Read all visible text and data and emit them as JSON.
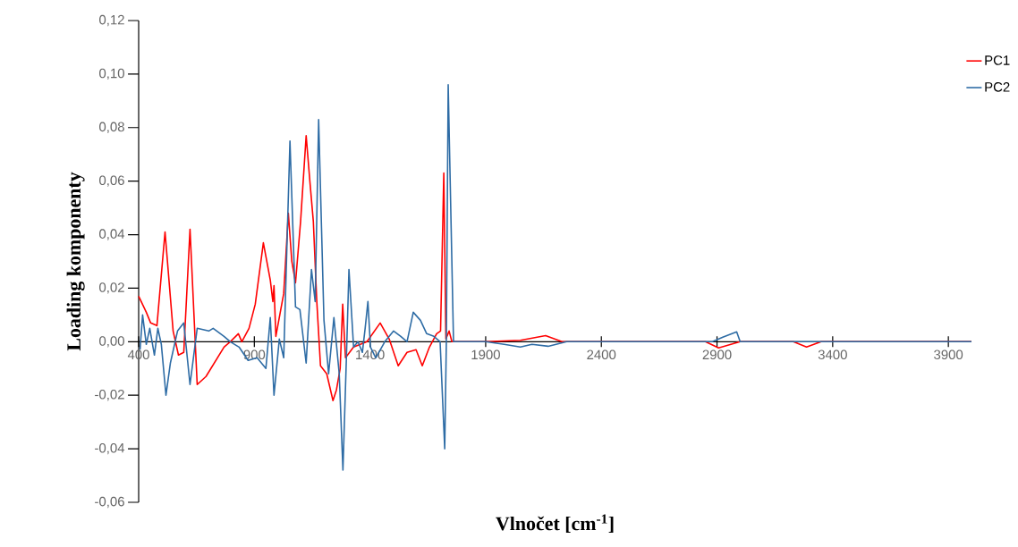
{
  "chart_data": {
    "type": "line",
    "xlabel": "Vlnočet [cm$^{-1}$]",
    "ylabel": "Loading komponenty",
    "xlim": [
      400,
      4000
    ],
    "ylim": [
      -0.06,
      0.12
    ],
    "xticks": [
      400,
      900,
      1400,
      1900,
      2400,
      2900,
      3400,
      3900
    ],
    "yticks": [
      {
        "value": -0.06,
        "label": "-0,06"
      },
      {
        "value": -0.04,
        "label": "-0,04"
      },
      {
        "value": -0.02,
        "label": "-0,02"
      },
      {
        "value": 0,
        "label": "0,00"
      },
      {
        "value": 0.02,
        "label": "0,02"
      },
      {
        "value": 0.04,
        "label": "0,04"
      },
      {
        "value": 0.06,
        "label": "0,06"
      },
      {
        "value": 0.08,
        "label": "0,08"
      },
      {
        "value": 0.1,
        "label": "0,10"
      },
      {
        "value": 0.12,
        "label": "0,12"
      }
    ],
    "grid": false,
    "legend": "top right",
    "marker": "none",
    "line_style": "solid",
    "series": [
      {
        "name": "PC1",
        "color": "#ff0000",
        "x": [
          400,
          433,
          452,
          479,
          514,
          549,
          572,
          595,
          622,
          653,
          691,
          769,
          796,
          831,
          846,
          877,
          904,
          939,
          969,
          980,
          985,
          993,
          1027,
          1047,
          1062,
          1078,
          1100,
          1124,
          1140,
          1155,
          1170,
          1186,
          1213,
          1240,
          1255,
          1271,
          1282,
          1294,
          1329,
          1387,
          1444,
          1483,
          1522,
          1560,
          1599,
          1626,
          1657,
          1688,
          1705,
          1719,
          1728,
          1742,
          1754,
          1900,
          2050,
          2159,
          2230,
          2850,
          2907,
          2960,
          3000,
          3230,
          3287,
          3350,
          4000
        ],
        "values": [
          0.017,
          0.011,
          0.007,
          0.006,
          0.041,
          0.004,
          -0.005,
          -0.004,
          0.042,
          -0.016,
          -0.013,
          -0.002,
          0,
          0.003,
          0,
          0.005,
          0.014,
          0.037,
          0.023,
          0.015,
          0.021,
          0.002,
          0.018,
          0.048,
          0.03,
          0.022,
          0.045,
          0.077,
          0.06,
          0.045,
          0.015,
          -0.009,
          -0.012,
          -0.022,
          -0.018,
          -0.01,
          0.014,
          -0.006,
          -0.002,
          0,
          0.007,
          0.001,
          -0.009,
          -0.004,
          -0.003,
          -0.009,
          -0.002,
          0.003,
          0.004,
          0.063,
          0.001,
          0.004,
          0,
          0,
          0.0005,
          0.0023,
          0,
          0,
          -0.0023,
          -0.001,
          0,
          0,
          -0.002,
          0,
          0
        ]
      },
      {
        "name": "PC2",
        "color": "#2e6ca5",
        "x": [
          406,
          417,
          433,
          448,
          468,
          483,
          498,
          518,
          537,
          568,
          595,
          622,
          653,
          703,
          722,
          769,
          796,
          834,
          873,
          912,
          950,
          969,
          985,
          1008,
          1027,
          1054,
          1078,
          1097,
          1124,
          1147,
          1163,
          1178,
          1201,
          1221,
          1244,
          1267,
          1283,
          1298,
          1309,
          1329,
          1348,
          1367,
          1379,
          1391,
          1402,
          1425,
          1464,
          1502,
          1533,
          1560,
          1587,
          1618,
          1645,
          1676,
          1703,
          1723,
          1730,
          1738,
          1761,
          1900,
          1980,
          2050,
          2100,
          2170,
          2250,
          2880,
          2925,
          2985,
          3000,
          3300,
          4000
        ],
        "values": [
          -0.003,
          0.01,
          -0.001,
          0.005,
          -0.005,
          0.005,
          -0.001,
          -0.02,
          -0.008,
          0.004,
          0.007,
          -0.016,
          0.005,
          0.004,
          0.005,
          0.002,
          0,
          -0.002,
          -0.007,
          -0.006,
          -0.01,
          0.009,
          -0.02,
          0.001,
          -0.006,
          0.075,
          0.013,
          0.012,
          -0.008,
          0.027,
          0.015,
          0.083,
          0.008,
          -0.012,
          0.009,
          -0.012,
          -0.048,
          -0.006,
          0.027,
          -0.002,
          0,
          -0.004,
          0.005,
          0.015,
          -0.002,
          -0.006,
          0,
          0.004,
          0.002,
          0,
          0.011,
          0.008,
          0.003,
          0.002,
          0,
          -0.04,
          0,
          0.096,
          0,
          0,
          -0.001,
          -0.002,
          -0.001,
          -0.0017,
          0,
          0,
          0.0017,
          0.0037,
          0,
          0,
          0
        ]
      }
    ]
  }
}
